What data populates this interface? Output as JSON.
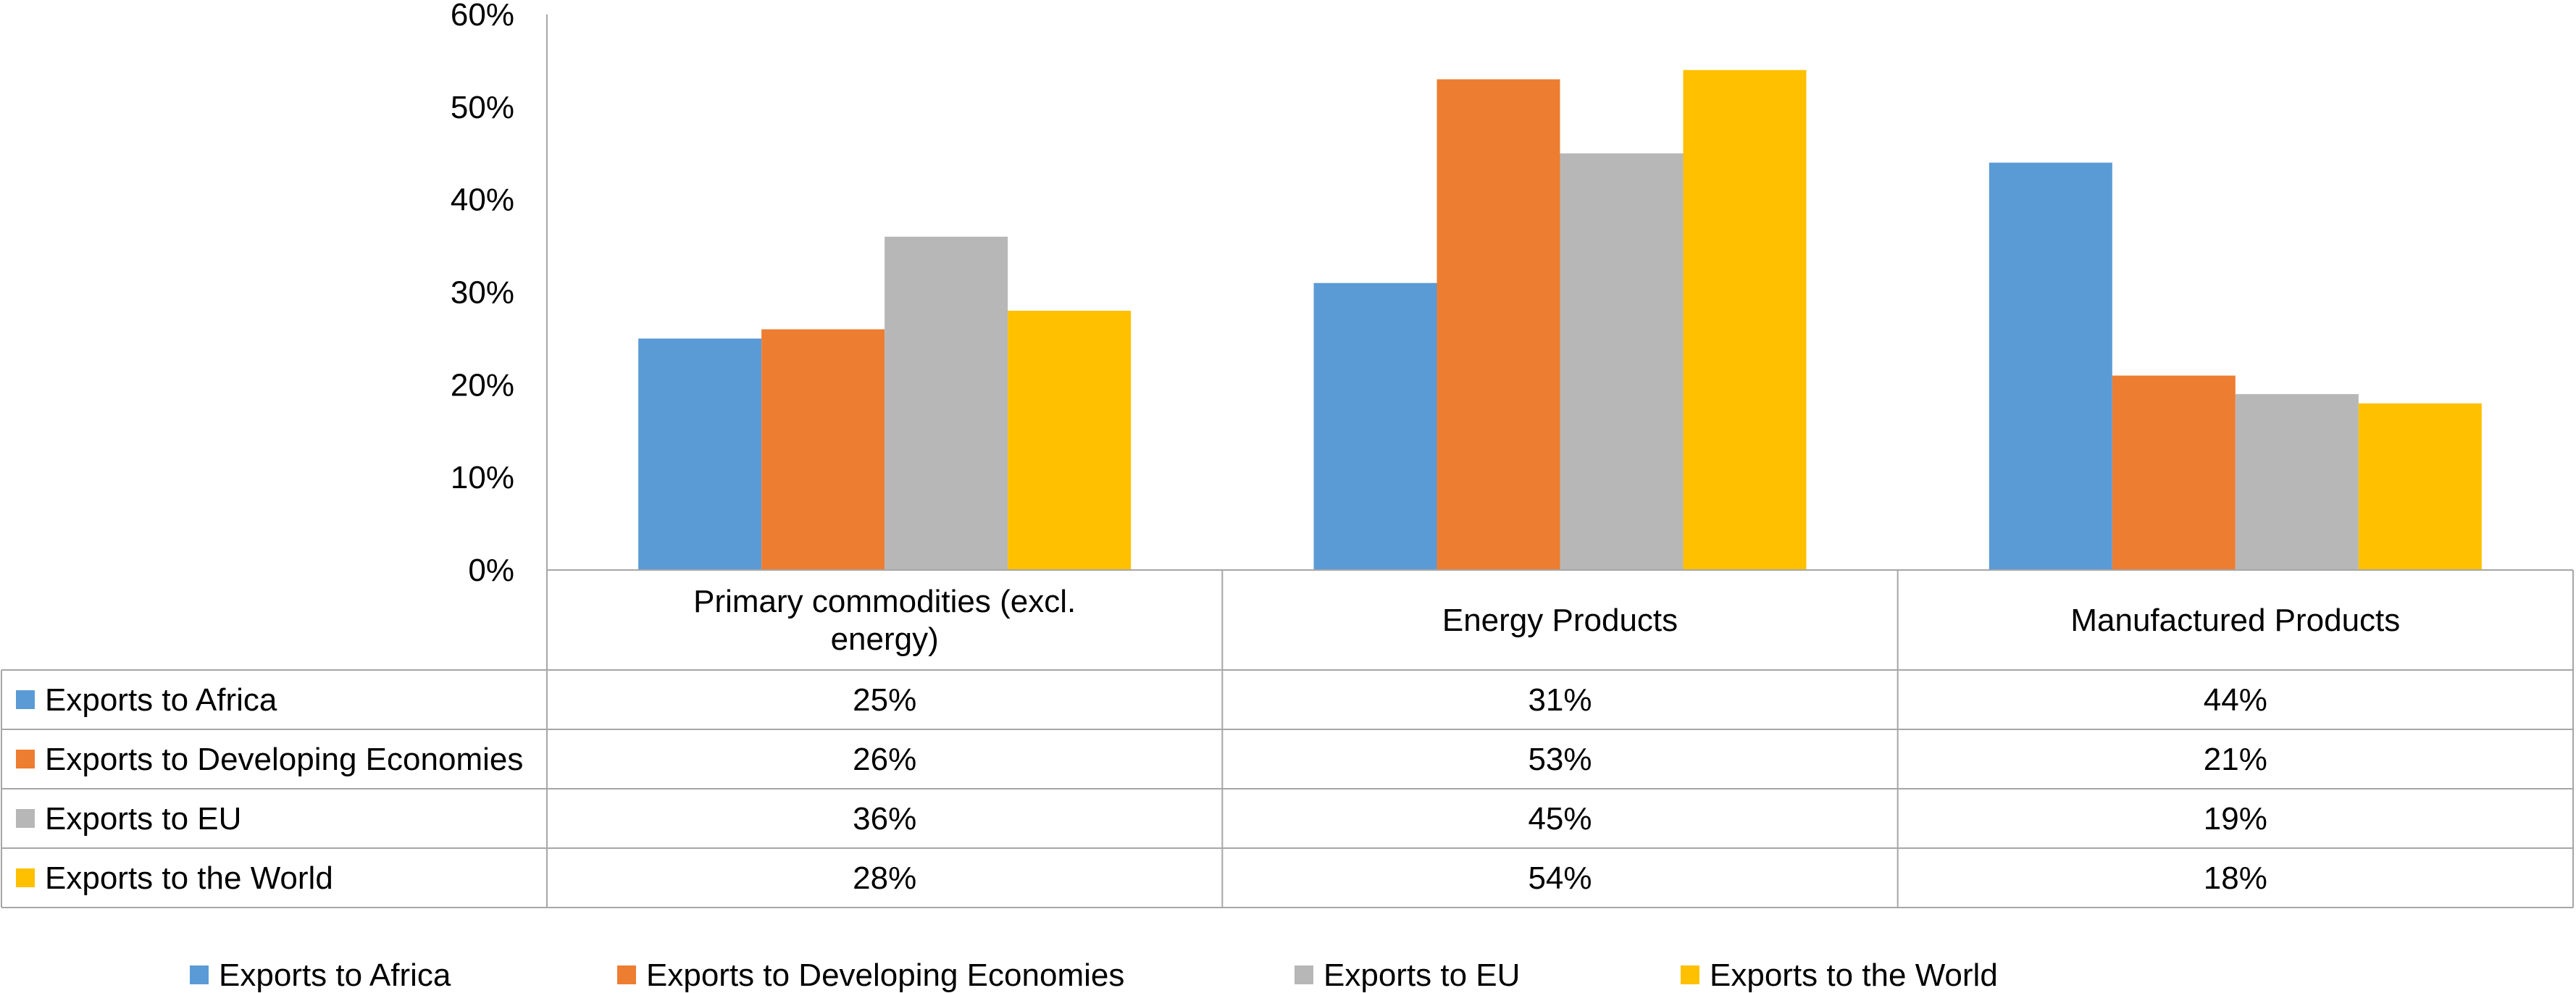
{
  "chart_data": {
    "type": "bar",
    "categories": [
      "Primary commodities (excl. energy)",
      "Energy Products",
      "Manufactured Products"
    ],
    "category_lines": [
      [
        "Primary commodities (excl.",
        "energy)"
      ],
      [
        "Energy Products"
      ],
      [
        "Manufactured Products"
      ]
    ],
    "series": [
      {
        "name": "Exports to Africa",
        "values": [
          25,
          31,
          44
        ],
        "labels": [
          "25%",
          "31%",
          "44%"
        ],
        "color": "#5B9BD5"
      },
      {
        "name": "Exports to Developing Economies",
        "values": [
          26,
          53,
          21
        ],
        "labels": [
          "26%",
          "53%",
          "21%"
        ],
        "color": "#ED7D31"
      },
      {
        "name": "Exports to EU",
        "values": [
          36,
          45,
          19
        ],
        "labels": [
          "36%",
          "45%",
          "19%"
        ],
        "color": "#B7B7B7"
      },
      {
        "name": "Exports to the World",
        "values": [
          28,
          54,
          18
        ],
        "labels": [
          "28%",
          "54%",
          "18%"
        ],
        "color": "#FFC000"
      }
    ],
    "ylim": [
      0,
      60
    ],
    "yticks": [
      "0%",
      "10%",
      "20%",
      "30%",
      "40%",
      "50%",
      "60%"
    ],
    "ytick_values": [
      0,
      10,
      20,
      30,
      40,
      50,
      60
    ],
    "grid": false,
    "legend_position": "bottom",
    "has_data_table": true,
    "title": "",
    "xlabel": "",
    "ylabel": ""
  }
}
